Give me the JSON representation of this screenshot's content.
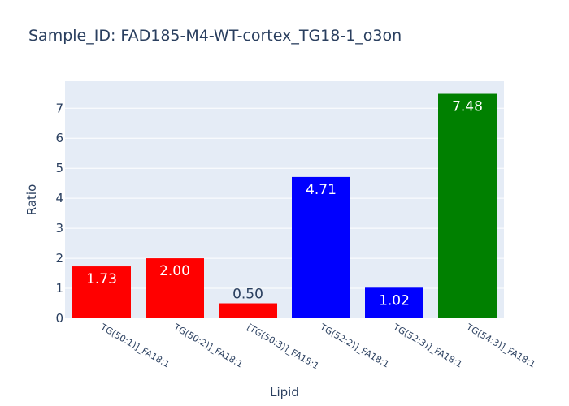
{
  "chart_data": {
    "type": "bar",
    "title": "Sample_ID: FAD185-M4-WT-cortex_TG18-1_o3on",
    "xlabel": "Lipid",
    "ylabel": "Ratio",
    "categories": [
      "TG(50:1)]_FA18:1",
      "TG(50:2)]_FA18:1",
      "[TG(50:3)]_FA18:1",
      "TG(52:2)]_FA18:1",
      "TG(52:3)]_FA18:1",
      "TG(54:3)]_FA18:1"
    ],
    "values": [
      1.73,
      2.0,
      0.5,
      4.71,
      1.02,
      7.48
    ],
    "value_labels": [
      "1.73",
      "2.00",
      "0.50",
      "4.71",
      "1.02",
      "7.48"
    ],
    "bar_colors": [
      "#ff0000",
      "#ff0000",
      "#ff0000",
      "#0000ff",
      "#0000ff",
      "#008000"
    ],
    "ylim": [
      0,
      7.9
    ],
    "yticks": [
      0,
      1,
      2,
      3,
      4,
      5,
      6,
      7
    ],
    "grid": true,
    "plot_background": "#e5ecf6",
    "text_color": "#2a3f5f"
  }
}
